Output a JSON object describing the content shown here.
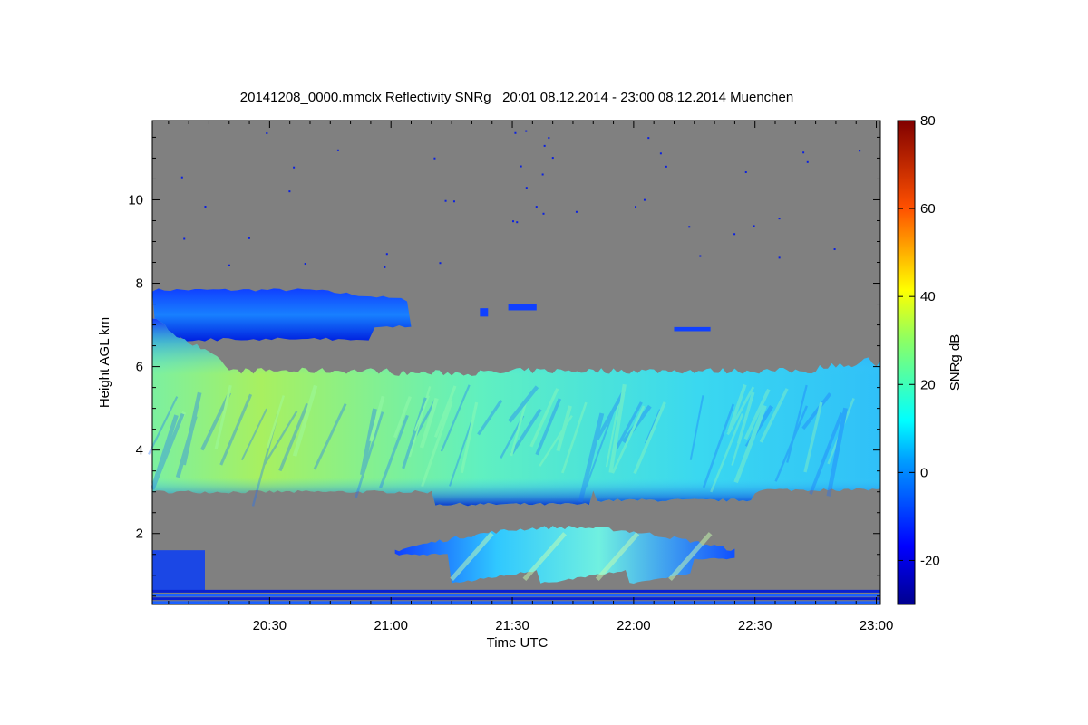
{
  "chart_data": {
    "type": "heatmap",
    "title": "20141208_0000.mmclx Reflectivity SNRg   20:01 08.12.2014 - 23:00 08.12.2014 Muenchen",
    "xlabel": "Time UTC",
    "ylabel": "Height AGL km",
    "x_ticks": [
      "20:30",
      "21:00",
      "21:30",
      "22:00",
      "22:30",
      "23:00"
    ],
    "x_tick_minutes": [
      30,
      60,
      90,
      120,
      150,
      180
    ],
    "xlim_minutes": [
      1,
      181
    ],
    "y_ticks": [
      2,
      4,
      6,
      8,
      10
    ],
    "ylim_km": [
      0.3,
      11.9
    ],
    "background_color": "#808080",
    "colorbar": {
      "label": "SNRg dB",
      "ticks": [
        80,
        60,
        40,
        20,
        0,
        -20
      ],
      "range": [
        -30,
        80
      ],
      "colormap": "jet"
    },
    "features": [
      {
        "name": "upper layer",
        "start_min": 1,
        "end_min": 65,
        "base_km": 6.6,
        "top_km": 7.8,
        "snr_db": -5
      },
      {
        "name": "main cloud layer",
        "start_min": 1,
        "end_min": 181,
        "base_km": 2.9,
        "top_km": 5.9,
        "snr_db": 25
      },
      {
        "name": "low cloud band",
        "start_min": 61,
        "end_min": 145,
        "base_km": 0.8,
        "top_km": 2.1,
        "snr_db": 10
      },
      {
        "name": "near-surface echo",
        "start_min": 1,
        "end_min": 181,
        "base_km": 0.3,
        "top_km": 0.6,
        "snr_db": -10
      }
    ]
  }
}
